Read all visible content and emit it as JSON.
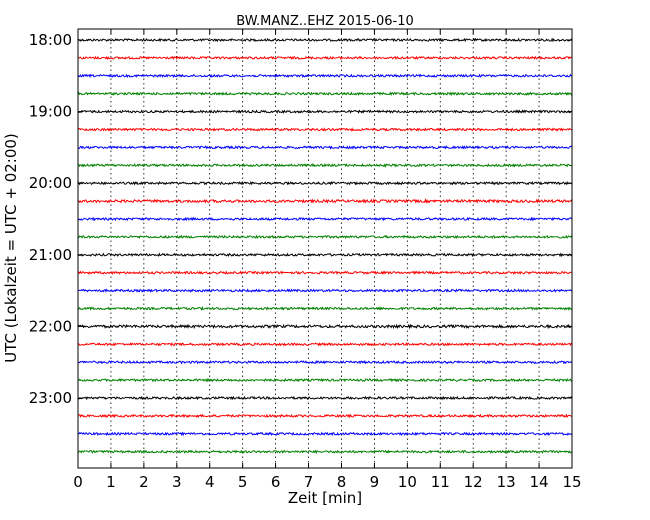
{
  "chart_data": {
    "type": "line",
    "title": "BW.MANZ..EHZ 2015-06-10",
    "xlabel": "Zeit  [min]",
    "ylabel": "UTC (Lokalzeit = UTC + 02:00)",
    "xlim": [
      0,
      15
    ],
    "x_ticks": [
      "0",
      "1",
      "2",
      "3",
      "4",
      "5",
      "6",
      "7",
      "8",
      "9",
      "10",
      "11",
      "12",
      "13",
      "14",
      "15"
    ],
    "y_tick_labels": [
      "18:00",
      "19:00",
      "20:00",
      "21:00",
      "22:00",
      "23:00"
    ],
    "grid": "vertical dotted",
    "colors": [
      "#000000",
      "#ff0000",
      "#0000ff",
      "#008000"
    ],
    "series": [
      {
        "start": "18:00",
        "color": "#000000",
        "amplitude": 1.0
      },
      {
        "start": "18:15",
        "color": "#ff0000",
        "amplitude": 1.0
      },
      {
        "start": "18:30",
        "color": "#0000ff",
        "amplitude": 1.0
      },
      {
        "start": "18:45",
        "color": "#008000",
        "amplitude": 1.0
      },
      {
        "start": "19:00",
        "color": "#000000",
        "amplitude": 1.0
      },
      {
        "start": "19:15",
        "color": "#ff0000",
        "amplitude": 1.0
      },
      {
        "start": "19:30",
        "color": "#0000ff",
        "amplitude": 1.0
      },
      {
        "start": "19:45",
        "color": "#008000",
        "amplitude": 1.0
      },
      {
        "start": "20:00",
        "color": "#000000",
        "amplitude": 1.0
      },
      {
        "start": "20:15",
        "color": "#ff0000",
        "amplitude": 1.2
      },
      {
        "start": "20:30",
        "color": "#0000ff",
        "amplitude": 1.0
      },
      {
        "start": "20:45",
        "color": "#008000",
        "amplitude": 1.0
      },
      {
        "start": "21:00",
        "color": "#000000",
        "amplitude": 1.0
      },
      {
        "start": "21:15",
        "color": "#ff0000",
        "amplitude": 1.0
      },
      {
        "start": "21:30",
        "color": "#0000ff",
        "amplitude": 1.0
      },
      {
        "start": "21:45",
        "color": "#008000",
        "amplitude": 1.0
      },
      {
        "start": "22:00",
        "color": "#000000",
        "amplitude": 1.2
      },
      {
        "start": "22:15",
        "color": "#ff0000",
        "amplitude": 1.0
      },
      {
        "start": "22:30",
        "color": "#0000ff",
        "amplitude": 1.0
      },
      {
        "start": "22:45",
        "color": "#008000",
        "amplitude": 1.0
      },
      {
        "start": "23:00",
        "color": "#000000",
        "amplitude": 1.0
      },
      {
        "start": "23:15",
        "color": "#ff0000",
        "amplitude": 1.0
      },
      {
        "start": "23:30",
        "color": "#0000ff",
        "amplitude": 1.0
      },
      {
        "start": "23:45",
        "color": "#008000",
        "amplitude": 1.0
      }
    ]
  }
}
